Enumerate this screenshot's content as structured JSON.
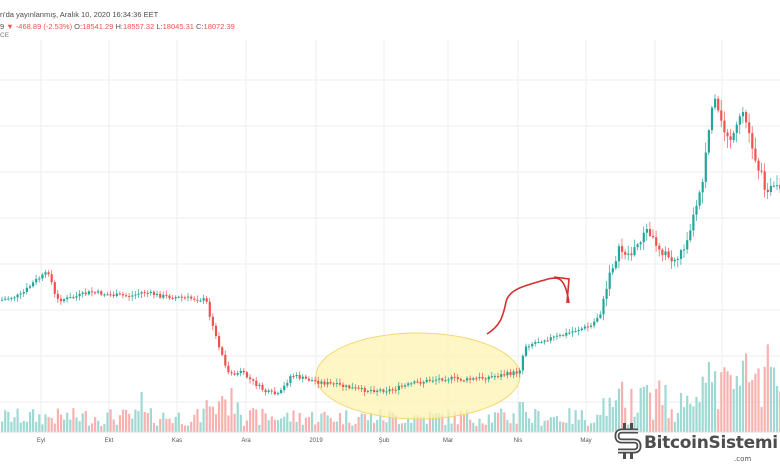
{
  "header": {
    "line1": "n'da yayınlanmış, Aralık 10, 2020 16:34:36 EET",
    "line2_prefix": "9",
    "change_arrow": "▼",
    "change": "-468.89 (-2.53%)",
    "o_key": "O:",
    "o_val": "18541.29",
    "h_key": "H:",
    "h_val": "18557.32",
    "l_key": "L:",
    "l_val": "18045.31",
    "c_key": "C:",
    "c_val": "18072.39",
    "line3": "CE"
  },
  "xaxis": {
    "labels": [
      "Eyl",
      "Ekt",
      "Kas",
      "Ara",
      "2019",
      "Şub",
      "Mar",
      "Nis",
      "May"
    ]
  },
  "colors": {
    "up": "#26a69a",
    "down": "#ef5350",
    "vol_up": "#9fd9d3",
    "vol_down": "#f7b2b0",
    "highlight_fill": "#fdf3b0",
    "highlight_stroke": "#f4d773",
    "arrow": "#d32f2f",
    "grid": "#eeeeee"
  },
  "annotation": {
    "ellipse_label": "",
    "arrow_label": ""
  },
  "logo": {
    "text": "BitcoinSistemi",
    "sub": ".com",
    "icon": "bitcoin-s-icon"
  }
}
